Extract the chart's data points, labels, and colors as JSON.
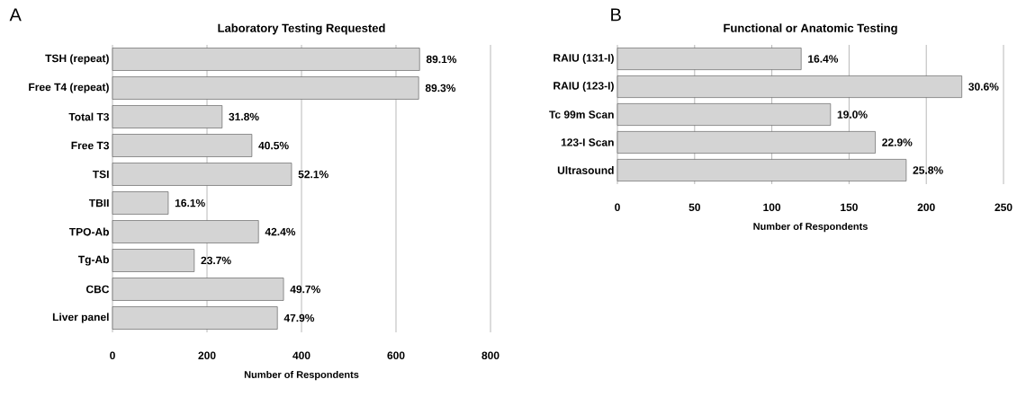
{
  "chart_data": [
    {
      "type": "bar",
      "orientation": "horizontal",
      "title": "Laboratory Testing Requested",
      "xlabel": "Number of Respondents",
      "annotations": [
        "A",
        {
          "text": "89.1%",
          "x": 650,
          "y": "TSH (repeat)"
        },
        {
          "text": "89.3%",
          "x": 648,
          "y": "Free T4 (repeat)"
        },
        {
          "text": "31.8%",
          "x": 232,
          "y": "Total T3"
        },
        {
          "text": "40.5%",
          "x": 295,
          "y": "Free T3"
        },
        {
          "text": "52.1%",
          "x": 379,
          "y": "TSI"
        },
        {
          "text": "16.1%",
          "x": 118,
          "y": "TBII"
        },
        {
          "text": "42.4%",
          "x": 309,
          "y": "TPO-Ab"
        },
        {
          "text": "23.7%",
          "x": 173,
          "y": "Tg-Ab"
        },
        {
          "text": "49.7%",
          "x": 362,
          "y": "CBC"
        },
        {
          "text": "47.9%",
          "x": 349,
          "y": "Liver panel"
        }
      ],
      "categories": [
        "TSH (repeat)",
        "Free T4 (repeat)",
        "Total T3",
        "Free T3",
        "TSI",
        "TBII",
        "TPO-Ab",
        "Tg-Ab",
        "CBC",
        "Liver panel"
      ],
      "values": [
        650,
        648,
        232,
        295,
        379,
        118,
        309,
        173,
        362,
        349
      ],
      "color": "#d4d4d4",
      "xlim": [
        0,
        800
      ],
      "xticks": [
        0,
        200,
        400,
        600,
        800
      ],
      "grid": "x"
    },
    {
      "type": "bar",
      "orientation": "horizontal",
      "title": "Functional or Anatomic Testing",
      "xlabel": "Number of Respondents",
      "annotations": [
        "B",
        {
          "text": "16.4%",
          "x": 119,
          "y": "RAIU (131-I)"
        },
        {
          "text": "30.6%",
          "x": 223,
          "y": "RAIU (123-I)"
        },
        {
          "text": "19.0%",
          "x": 138,
          "y": "Tc 99m Scan"
        },
        {
          "text": "22.9%",
          "x": 167,
          "y": "123-I Scan"
        },
        {
          "text": "25.8%",
          "x": 187,
          "y": "Ultrasound"
        }
      ],
      "categories": [
        "RAIU (131-I)",
        "RAIU (123-I)",
        "Tc 99m Scan",
        "123-I Scan",
        "Ultrasound"
      ],
      "values": [
        119,
        223,
        138,
        167,
        187
      ],
      "color": "#d4d4d4",
      "xlim": [
        0,
        250
      ],
      "xticks": [
        0,
        50,
        100,
        150,
        200,
        250
      ],
      "grid": "x"
    }
  ]
}
